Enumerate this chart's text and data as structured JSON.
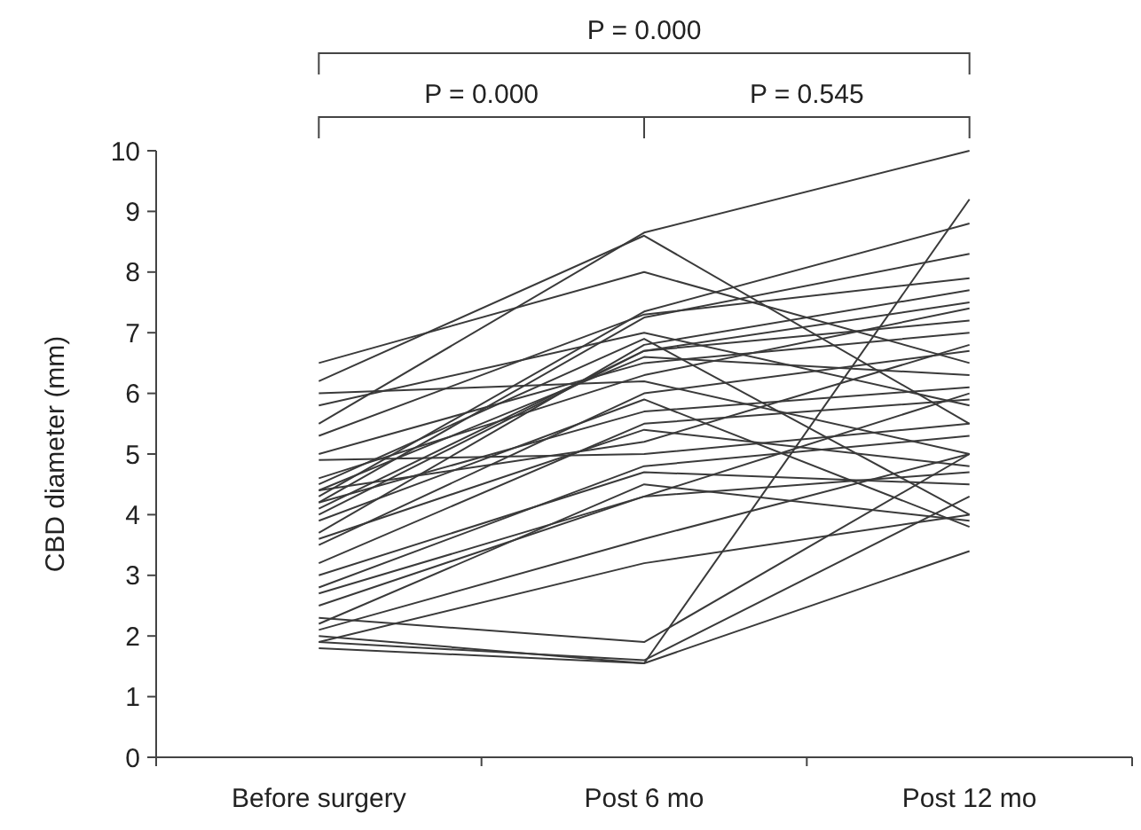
{
  "chart_data": {
    "type": "line",
    "ylabel": "CBD diameter (mm)",
    "categories": [
      "Before surgery",
      "Post 6 mo",
      "Post 12 mo"
    ],
    "ylim": [
      0,
      10
    ],
    "yticks": [
      0,
      1,
      2,
      3,
      4,
      5,
      6,
      7,
      8,
      9,
      10
    ],
    "grid": false,
    "marker": "none",
    "annotations": [
      "P = 0.000",
      "P = 0.000",
      "P = 0.545"
    ],
    "series": [
      {
        "color": "#3a3a3a",
        "values": [
          5.5,
          8.65,
          10.0
        ]
      },
      {
        "color": "#3a3a3a",
        "values": [
          2.0,
          1.55,
          9.2
        ]
      },
      {
        "color": "#3a3a3a",
        "values": [
          1.8,
          1.55,
          3.4
        ]
      },
      {
        "color": "#3a3a3a",
        "values": [
          1.9,
          1.6,
          4.3
        ]
      },
      {
        "color": "#3a3a3a",
        "values": [
          2.3,
          1.9,
          5.0
        ]
      },
      {
        "color": "#3a3a3a",
        "values": [
          6.5,
          8.0,
          6.5
        ]
      },
      {
        "color": "#3a3a3a",
        "values": [
          6.2,
          8.6,
          5.5
        ]
      },
      {
        "color": "#3a3a3a",
        "values": [
          4.3,
          7.35,
          8.8
        ]
      },
      {
        "color": "#3a3a3a",
        "values": [
          4.2,
          7.25,
          8.3
        ]
      },
      {
        "color": "#3a3a3a",
        "values": [
          5.3,
          7.3,
          7.9
        ]
      },
      {
        "color": "#3a3a3a",
        "values": [
          3.7,
          6.8,
          7.7
        ]
      },
      {
        "color": "#3a3a3a",
        "values": [
          4.0,
          6.7,
          7.5
        ]
      },
      {
        "color": "#3a3a3a",
        "values": [
          4.1,
          6.7,
          7.2
        ]
      },
      {
        "color": "#3a3a3a",
        "values": [
          5.0,
          6.5,
          7.0
        ]
      },
      {
        "color": "#3a3a3a",
        "values": [
          3.5,
          6.0,
          6.7
        ]
      },
      {
        "color": "#3a3a3a",
        "values": [
          4.4,
          6.6,
          6.3
        ]
      },
      {
        "color": "#3a3a3a",
        "values": [
          4.2,
          5.7,
          6.1
        ]
      },
      {
        "color": "#3a3a3a",
        "values": [
          3.2,
          5.5,
          5.9
        ]
      },
      {
        "color": "#3a3a3a",
        "values": [
          4.9,
          5.0,
          5.5
        ]
      },
      {
        "color": "#3a3a3a",
        "values": [
          2.8,
          4.8,
          5.3
        ]
      },
      {
        "color": "#3a3a3a",
        "values": [
          3.0,
          4.7,
          4.5
        ]
      },
      {
        "color": "#3a3a3a",
        "values": [
          2.5,
          4.3,
          4.7
        ]
      },
      {
        "color": "#3a3a3a",
        "values": [
          6.0,
          6.2,
          5.0
        ]
      },
      {
        "color": "#3a3a3a",
        "values": [
          4.5,
          6.9,
          4.0
        ]
      },
      {
        "color": "#3a3a3a",
        "values": [
          3.9,
          5.9,
          3.8
        ]
      },
      {
        "color": "#3a3a3a",
        "values": [
          2.1,
          3.6,
          5.0
        ]
      },
      {
        "color": "#3a3a3a",
        "values": [
          1.9,
          3.2,
          4.0
        ]
      },
      {
        "color": "#3a3a3a",
        "values": [
          2.7,
          4.3,
          6.0
        ]
      },
      {
        "color": "#3a3a3a",
        "values": [
          4.4,
          5.2,
          6.8
        ]
      },
      {
        "color": "#3a3a3a",
        "values": [
          5.8,
          7.0,
          5.8
        ]
      },
      {
        "color": "#3a3a3a",
        "values": [
          3.6,
          5.4,
          4.8
        ]
      },
      {
        "color": "#3a3a3a",
        "values": [
          4.6,
          6.3,
          7.4
        ]
      },
      {
        "color": "#3a3a3a",
        "values": [
          2.2,
          4.5,
          3.9
        ]
      }
    ]
  }
}
